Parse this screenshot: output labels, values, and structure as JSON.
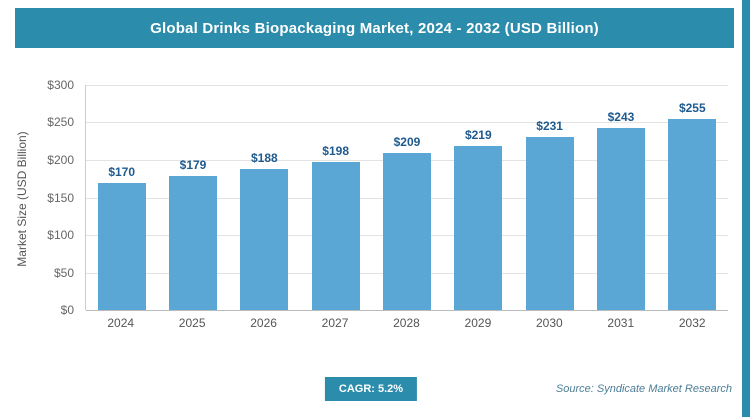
{
  "header": {
    "title": "Global Drinks Biopackaging Market, 2024 - 2032 (USD Billion)"
  },
  "chart_data": {
    "type": "bar",
    "title": "Global Drinks Biopackaging Market, 2024 - 2032 (USD Billion)",
    "categories": [
      "2024",
      "2025",
      "2026",
      "2027",
      "2028",
      "2029",
      "2030",
      "2031",
      "2032"
    ],
    "values": [
      170,
      179,
      188,
      198,
      209,
      219,
      231,
      243,
      255
    ],
    "value_labels": [
      "$170",
      "$179",
      "$188",
      "$198",
      "$209",
      "$219",
      "$231",
      "$243",
      "$255"
    ],
    "xlabel": "",
    "ylabel": "Market Size (USD Billion)",
    "ylim": [
      0,
      300
    ],
    "ytick_values": [
      300,
      250,
      200,
      150,
      100,
      50,
      0
    ],
    "ytick_labels": [
      "$300",
      "$250",
      "$200",
      "$150",
      "$100",
      "$50",
      "$0"
    ],
    "grid": true,
    "legend": false,
    "bar_color": "#5aa7d6",
    "value_label_color": "#1e5a8e"
  },
  "footer": {
    "cagr_label": "CAGR: 5.2%",
    "source": "Source: Syndicate Market Research"
  },
  "colors": {
    "accent_teal": "#2b8cab",
    "bar_blue": "#5aa7d6"
  }
}
